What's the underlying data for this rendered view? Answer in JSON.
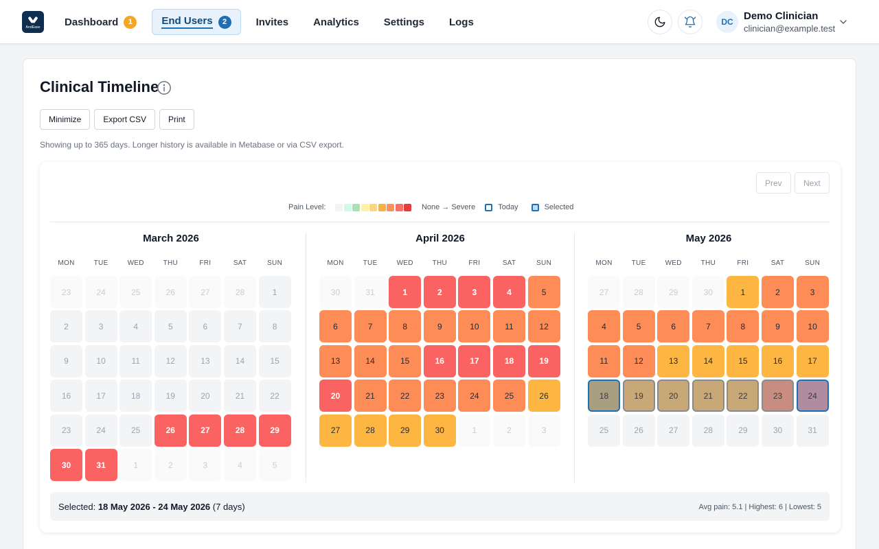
{
  "app": {
    "logo_text": "AndEase"
  },
  "nav": [
    {
      "label": "Dashboard",
      "badge": "1",
      "badge_color": "orange",
      "active": false,
      "name": "nav-dashboard"
    },
    {
      "label": "End Users",
      "badge": "2",
      "badge_color": "blue",
      "active": true,
      "name": "nav-end-users"
    },
    {
      "label": "Invites",
      "active": false,
      "name": "nav-invites"
    },
    {
      "label": "Analytics",
      "active": false,
      "name": "nav-analytics"
    },
    {
      "label": "Settings",
      "active": false,
      "name": "nav-settings"
    },
    {
      "label": "Logs",
      "active": false,
      "name": "nav-logs"
    }
  ],
  "header_icons": {
    "theme": "moon-icon",
    "notifications": "bell-icon"
  },
  "user": {
    "initials": "DC",
    "name": "Demo Clinician",
    "email": "clinician@example.test"
  },
  "page": {
    "title": "Clinical Timeline",
    "actions": [
      "Minimize",
      "Export CSV",
      "Print"
    ],
    "helper": "Showing up to 365 days. Longer history is available in Metabase or via CSV export."
  },
  "pager": {
    "prev": "Prev",
    "next": "Next"
  },
  "legend": {
    "label": "Pain Level:",
    "scale_colors": [
      "#f3f4f6",
      "#d1fae5",
      "#a7e3b5",
      "#fdf2a6",
      "#fcd581",
      "#fbb040",
      "#f99357",
      "#f4716a",
      "#e43d3d"
    ],
    "range": "None → Severe",
    "today": "Today",
    "selected": "Selected"
  },
  "weekdays": [
    "MON",
    "TUE",
    "WED",
    "THU",
    "FRI",
    "SAT",
    "SUN"
  ],
  "colors": {
    "empty": "#f3f4f6",
    "outside": "#fafafa",
    "red": "#fb6363",
    "orange": "#fd8c57",
    "amber": "#feb643",
    "sel_tan": "#c9a878",
    "sel_olive": "#a99e80",
    "sel_rose": "#c88c80",
    "sel_mauve": "#b08ca0",
    "selected_border": "#1f6fb5"
  },
  "months": [
    {
      "title": "March 2026",
      "days": [
        {
          "d": "23",
          "s": "outside"
        },
        {
          "d": "24",
          "s": "outside"
        },
        {
          "d": "25",
          "s": "outside"
        },
        {
          "d": "26",
          "s": "outside"
        },
        {
          "d": "27",
          "s": "outside"
        },
        {
          "d": "28",
          "s": "outside"
        },
        {
          "d": "1",
          "s": "empty"
        },
        {
          "d": "2",
          "s": "empty"
        },
        {
          "d": "3",
          "s": "empty"
        },
        {
          "d": "4",
          "s": "empty"
        },
        {
          "d": "5",
          "s": "empty"
        },
        {
          "d": "6",
          "s": "empty"
        },
        {
          "d": "7",
          "s": "empty"
        },
        {
          "d": "8",
          "s": "empty"
        },
        {
          "d": "9",
          "s": "empty"
        },
        {
          "d": "10",
          "s": "empty"
        },
        {
          "d": "11",
          "s": "empty"
        },
        {
          "d": "12",
          "s": "empty"
        },
        {
          "d": "13",
          "s": "empty"
        },
        {
          "d": "14",
          "s": "empty"
        },
        {
          "d": "15",
          "s": "empty"
        },
        {
          "d": "16",
          "s": "empty"
        },
        {
          "d": "17",
          "s": "empty"
        },
        {
          "d": "18",
          "s": "empty"
        },
        {
          "d": "19",
          "s": "empty"
        },
        {
          "d": "20",
          "s": "empty"
        },
        {
          "d": "21",
          "s": "empty"
        },
        {
          "d": "22",
          "s": "empty"
        },
        {
          "d": "23",
          "s": "empty"
        },
        {
          "d": "24",
          "s": "empty"
        },
        {
          "d": "25",
          "s": "empty"
        },
        {
          "d": "26",
          "s": "red"
        },
        {
          "d": "27",
          "s": "red"
        },
        {
          "d": "28",
          "s": "red"
        },
        {
          "d": "29",
          "s": "red"
        },
        {
          "d": "30",
          "s": "red"
        },
        {
          "d": "31",
          "s": "red"
        },
        {
          "d": "1",
          "s": "outside"
        },
        {
          "d": "2",
          "s": "outside"
        },
        {
          "d": "3",
          "s": "outside"
        },
        {
          "d": "4",
          "s": "outside"
        },
        {
          "d": "5",
          "s": "outside"
        }
      ]
    },
    {
      "title": "April 2026",
      "days": [
        {
          "d": "30",
          "s": "outside"
        },
        {
          "d": "31",
          "s": "outside"
        },
        {
          "d": "1",
          "s": "red"
        },
        {
          "d": "2",
          "s": "red"
        },
        {
          "d": "3",
          "s": "red"
        },
        {
          "d": "4",
          "s": "red"
        },
        {
          "d": "5",
          "s": "orange"
        },
        {
          "d": "6",
          "s": "orange"
        },
        {
          "d": "7",
          "s": "orange"
        },
        {
          "d": "8",
          "s": "orange"
        },
        {
          "d": "9",
          "s": "orange"
        },
        {
          "d": "10",
          "s": "orange"
        },
        {
          "d": "11",
          "s": "orange"
        },
        {
          "d": "12",
          "s": "orange"
        },
        {
          "d": "13",
          "s": "orange"
        },
        {
          "d": "14",
          "s": "orange"
        },
        {
          "d": "15",
          "s": "orange"
        },
        {
          "d": "16",
          "s": "red"
        },
        {
          "d": "17",
          "s": "red"
        },
        {
          "d": "18",
          "s": "red"
        },
        {
          "d": "19",
          "s": "red"
        },
        {
          "d": "20",
          "s": "red"
        },
        {
          "d": "21",
          "s": "orange"
        },
        {
          "d": "22",
          "s": "orange"
        },
        {
          "d": "23",
          "s": "orange"
        },
        {
          "d": "24",
          "s": "orange"
        },
        {
          "d": "25",
          "s": "orange"
        },
        {
          "d": "26",
          "s": "amber"
        },
        {
          "d": "27",
          "s": "amber"
        },
        {
          "d": "28",
          "s": "amber"
        },
        {
          "d": "29",
          "s": "amber"
        },
        {
          "d": "30",
          "s": "amber"
        },
        {
          "d": "1",
          "s": "outside"
        },
        {
          "d": "2",
          "s": "outside"
        },
        {
          "d": "3",
          "s": "outside"
        }
      ]
    },
    {
      "title": "May 2026",
      "days": [
        {
          "d": "27",
          "s": "outside"
        },
        {
          "d": "28",
          "s": "outside"
        },
        {
          "d": "29",
          "s": "outside"
        },
        {
          "d": "30",
          "s": "outside"
        },
        {
          "d": "1",
          "s": "amber"
        },
        {
          "d": "2",
          "s": "orange"
        },
        {
          "d": "3",
          "s": "orange"
        },
        {
          "d": "4",
          "s": "orange"
        },
        {
          "d": "5",
          "s": "orange"
        },
        {
          "d": "6",
          "s": "orange"
        },
        {
          "d": "7",
          "s": "orange"
        },
        {
          "d": "8",
          "s": "orange"
        },
        {
          "d": "9",
          "s": "orange"
        },
        {
          "d": "10",
          "s": "orange"
        },
        {
          "d": "11",
          "s": "orange"
        },
        {
          "d": "12",
          "s": "orange"
        },
        {
          "d": "13",
          "s": "amber"
        },
        {
          "d": "14",
          "s": "amber"
        },
        {
          "d": "15",
          "s": "amber"
        },
        {
          "d": "16",
          "s": "amber"
        },
        {
          "d": "17",
          "s": "amber"
        },
        {
          "d": "18",
          "s": "sel_olive",
          "sel": "range-start"
        },
        {
          "d": "19",
          "s": "sel_tan",
          "sel": "range"
        },
        {
          "d": "20",
          "s": "sel_tan",
          "sel": "range"
        },
        {
          "d": "21",
          "s": "sel_tan",
          "sel": "range"
        },
        {
          "d": "22",
          "s": "sel_tan",
          "sel": "range"
        },
        {
          "d": "23",
          "s": "sel_rose",
          "sel": "range"
        },
        {
          "d": "24",
          "s": "sel_mauve",
          "sel": "range-end"
        },
        {
          "d": "25",
          "s": "empty"
        },
        {
          "d": "26",
          "s": "empty"
        },
        {
          "d": "27",
          "s": "empty"
        },
        {
          "d": "28",
          "s": "empty"
        },
        {
          "d": "29",
          "s": "empty"
        },
        {
          "d": "30",
          "s": "empty"
        },
        {
          "d": "31",
          "s": "empty"
        }
      ]
    }
  ],
  "selection": {
    "prefix": "Selected:",
    "range": "18 May 2026 - 24 May 2026",
    "days": "(7 days)",
    "stats": "Avg pain: 5.1 | Highest: 6 | Lowest: 5"
  }
}
